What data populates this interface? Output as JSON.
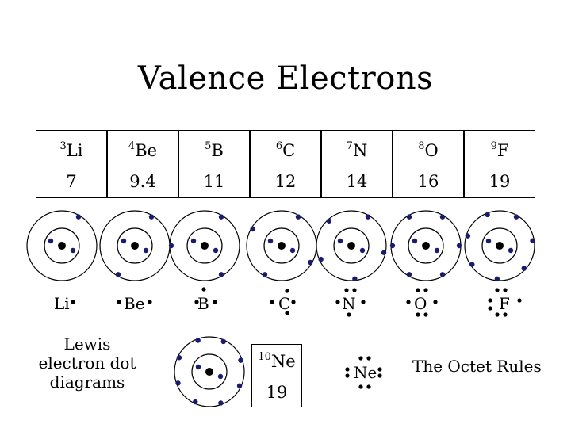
{
  "title": "Valence Electrons",
  "elements": [
    {
      "number": "3",
      "symbol": "Li",
      "value": "7"
    },
    {
      "number": "4",
      "symbol": "Be",
      "value": "9.4"
    },
    {
      "number": "5",
      "symbol": "B",
      "value": "11"
    },
    {
      "number": "6",
      "symbol": "C",
      "value": "12"
    },
    {
      "number": "7",
      "symbol": "N",
      "value": "14"
    },
    {
      "number": "8",
      "symbol": "O",
      "value": "16"
    },
    {
      "number": "9",
      "symbol": "F",
      "value": "19"
    }
  ],
  "lewis": [
    {
      "symbol": "Li"
    },
    {
      "symbol": "Be"
    },
    {
      "symbol": "B"
    },
    {
      "symbol": "C"
    },
    {
      "symbol": "N"
    },
    {
      "symbol": "O"
    },
    {
      "symbol": "F"
    }
  ],
  "lewis_caption": "Lewis electron dot diagrams",
  "neon": {
    "number": "10",
    "symbol": "Ne",
    "value": "19",
    "lewis_symbol": "Ne"
  },
  "octet_caption": "The Octet Rules",
  "colors": {
    "nucleus": "#000000",
    "electron": "#1a1a6e",
    "line": "#000000"
  }
}
